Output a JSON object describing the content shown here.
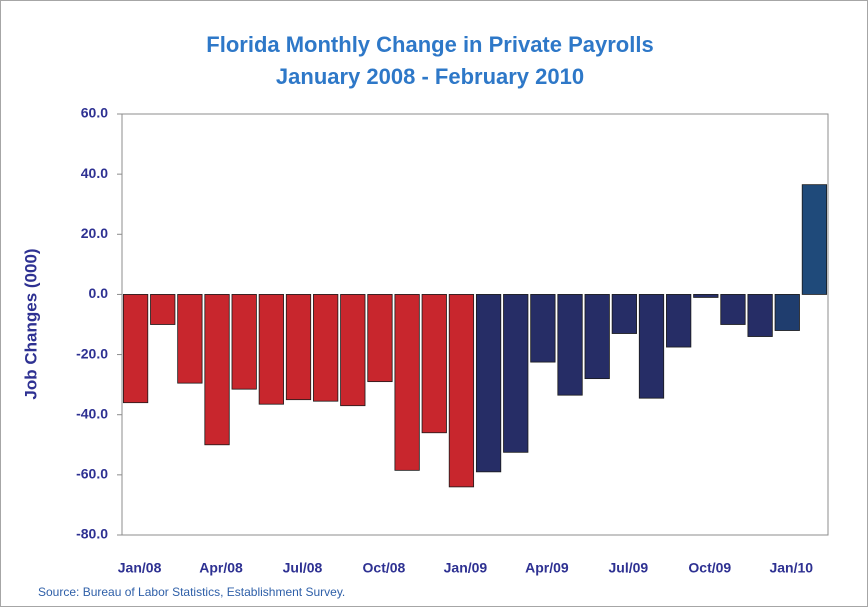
{
  "chart_data": {
    "type": "bar",
    "title": "Florida Monthly Change in Private Payrolls",
    "subtitle": "January 2008 - February 2010",
    "y_label": "Job Changes (000)",
    "source": "Source: Bureau of Labor Statistics, Establishment Survey.",
    "categories": [
      "Jan/08",
      null,
      null,
      "Apr/08",
      null,
      null,
      "Jul/08",
      null,
      null,
      "Oct/08",
      null,
      null,
      "Jan/09",
      null,
      null,
      "Apr/09",
      null,
      null,
      "Jul/09",
      null,
      null,
      "Oct/09",
      null,
      null,
      "Jan/10",
      null
    ],
    "values": [
      -36,
      -10,
      -29.5,
      -50,
      -31.5,
      -36.5,
      -35,
      -35.5,
      -37,
      -29,
      -58.5,
      -46,
      -64,
      -59,
      -52.5,
      -22.5,
      -33.5,
      -28,
      -13,
      -34.5,
      -17.5,
      -1,
      -10,
      -14,
      -12,
      36.5
    ],
    "colors": [
      "#c8262d",
      "#c8262d",
      "#c8262d",
      "#c8262d",
      "#c8262d",
      "#c8262d",
      "#c8262d",
      "#c8262d",
      "#c8262d",
      "#c8262d",
      "#c8262d",
      "#c8262d",
      "#c8262d",
      "#262d66",
      "#262d66",
      "#262d66",
      "#262d66",
      "#262d66",
      "#262d66",
      "#262d66",
      "#262d66",
      "#262d66",
      "#262d66",
      "#262d66",
      "#1f3d6e",
      "#1f4a7a"
    ],
    "ylim": [
      -80,
      60
    ],
    "yticks": [
      {
        "value": -80,
        "label": "-80.0"
      },
      {
        "value": -60,
        "label": "-60.0"
      },
      {
        "value": -40,
        "label": "-40.0"
      },
      {
        "value": -20,
        "label": "-20.0"
      },
      {
        "value": 0,
        "label": "0.0"
      },
      {
        "value": 20,
        "label": "20.0"
      },
      {
        "value": 40,
        "label": "40.0"
      },
      {
        "value": 60,
        "label": "60.0"
      }
    ],
    "grid": false
  }
}
